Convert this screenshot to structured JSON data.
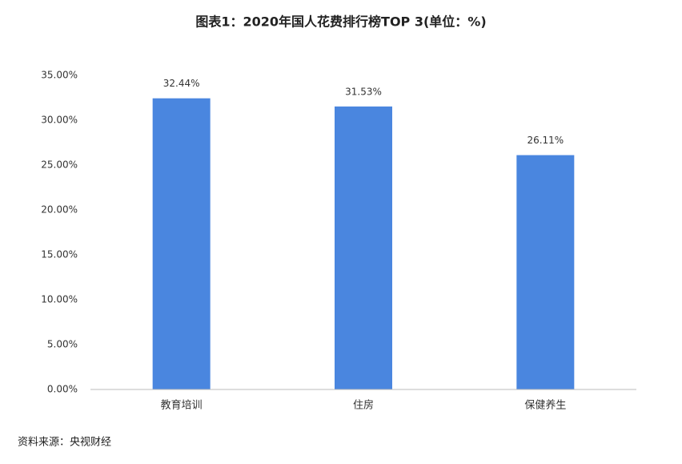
{
  "chart_data": {
    "type": "bar",
    "title": "图表1：2020年国人花费排行榜TOP 3(单位：%)",
    "categories": [
      "教育培训",
      "住房",
      "保健养生"
    ],
    "values": [
      32.44,
      31.53,
      26.11
    ],
    "value_labels": [
      "32.44%",
      "31.53%",
      "26.11%"
    ],
    "color": "#4a86df",
    "ylim": [
      0,
      35
    ],
    "yticks": [
      {
        "value": 0,
        "label": "0.00%"
      },
      {
        "value": 5,
        "label": "5.00%"
      },
      {
        "value": 10,
        "label": "10.00%"
      },
      {
        "value": 15,
        "label": "15.00%"
      },
      {
        "value": 20,
        "label": "20.00%"
      },
      {
        "value": 25,
        "label": "25.00%"
      },
      {
        "value": 30,
        "label": "30.00%"
      },
      {
        "value": 35,
        "label": "35.00%"
      }
    ],
    "grid": false,
    "source": "资料来源：央视财经"
  }
}
